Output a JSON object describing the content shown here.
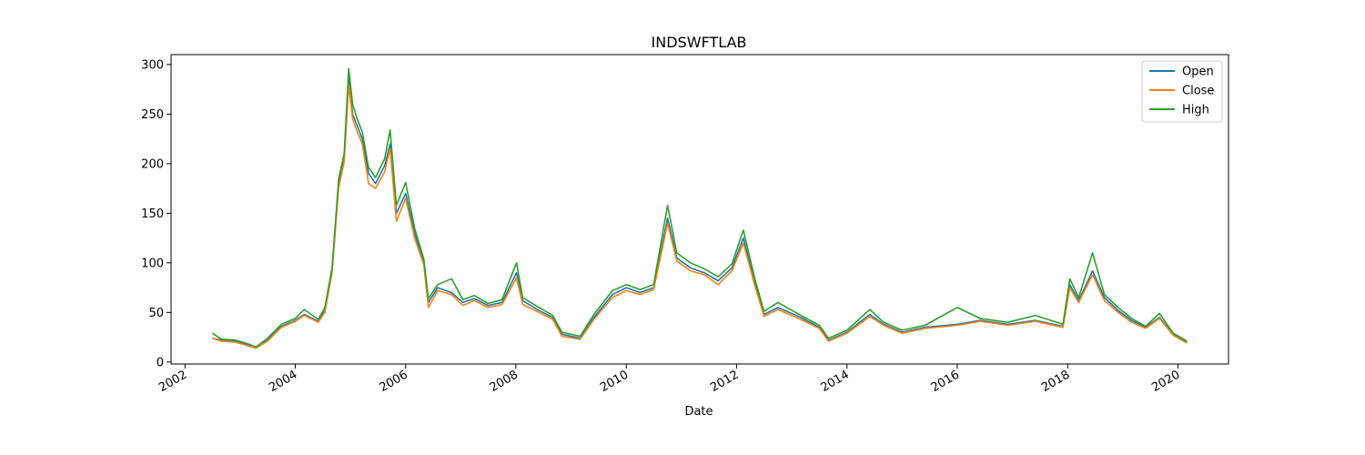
{
  "chart_data": {
    "type": "line",
    "title": "INDSWFTLAB",
    "xlabel": "Date",
    "ylabel": "",
    "xlim": [
      "2001-10-01",
      "2020-12-01"
    ],
    "ylim": [
      -2,
      310
    ],
    "grid": false,
    "legend_position": "top-right",
    "x_ticks": [
      "2002",
      "2004",
      "2006",
      "2008",
      "2010",
      "2012",
      "2014",
      "2016",
      "2018",
      "2020"
    ],
    "y_ticks": [
      0,
      50,
      100,
      150,
      200,
      250,
      300
    ],
    "series": [
      {
        "name": "Open",
        "color": "#1f77b4",
        "points": [
          [
            "2002-07-01",
            24
          ],
          [
            "2002-09-01",
            22
          ],
          [
            "2002-12-01",
            21
          ],
          [
            "2003-03-01",
            17
          ],
          [
            "2003-04-15",
            15
          ],
          [
            "2003-07-01",
            22
          ],
          [
            "2003-10-01",
            36
          ],
          [
            "2004-01-01",
            42
          ],
          [
            "2004-03-01",
            48
          ],
          [
            "2004-06-01",
            41
          ],
          [
            "2004-07-15",
            52
          ],
          [
            "2004-09-01",
            92
          ],
          [
            "2004-10-15",
            180
          ],
          [
            "2004-11-20",
            205
          ],
          [
            "2004-12-20",
            285
          ],
          [
            "2005-01-15",
            250
          ],
          [
            "2005-02-15",
            238
          ],
          [
            "2005-03-20",
            225
          ],
          [
            "2005-05-01",
            190
          ],
          [
            "2005-06-15",
            180
          ],
          [
            "2005-08-15",
            198
          ],
          [
            "2005-09-20",
            220
          ],
          [
            "2005-11-01",
            150
          ],
          [
            "2006-01-01",
            170
          ],
          [
            "2006-03-01",
            130
          ],
          [
            "2006-05-01",
            100
          ],
          [
            "2006-06-01",
            60
          ],
          [
            "2006-08-01",
            75
          ],
          [
            "2006-11-01",
            70
          ],
          [
            "2007-01-15",
            60
          ],
          [
            "2007-04-01",
            64
          ],
          [
            "2007-07-01",
            57
          ],
          [
            "2007-10-01",
            60
          ],
          [
            "2008-01-05",
            90
          ],
          [
            "2008-02-15",
            62
          ],
          [
            "2008-06-01",
            52
          ],
          [
            "2008-09-01",
            45
          ],
          [
            "2008-11-01",
            28
          ],
          [
            "2009-03-01",
            24
          ],
          [
            "2009-06-01",
            45
          ],
          [
            "2009-10-01",
            68
          ],
          [
            "2010-01-01",
            75
          ],
          [
            "2010-04-01",
            70
          ],
          [
            "2010-07-01",
            75
          ],
          [
            "2010-10-01",
            145
          ],
          [
            "2010-12-01",
            105
          ],
          [
            "2011-03-01",
            95
          ],
          [
            "2011-06-01",
            90
          ],
          [
            "2011-09-01",
            82
          ],
          [
            "2011-12-01",
            95
          ],
          [
            "2012-02-15",
            125
          ],
          [
            "2012-05-01",
            80
          ],
          [
            "2012-07-01",
            48
          ],
          [
            "2012-10-01",
            55
          ],
          [
            "2013-03-01",
            45
          ],
          [
            "2013-07-01",
            35
          ],
          [
            "2013-09-01",
            22
          ],
          [
            "2014-01-01",
            30
          ],
          [
            "2014-06-01",
            48
          ],
          [
            "2014-09-01",
            38
          ],
          [
            "2015-01-01",
            30
          ],
          [
            "2015-06-01",
            35
          ],
          [
            "2016-01-01",
            38
          ],
          [
            "2016-06-01",
            42
          ],
          [
            "2016-12-01",
            38
          ],
          [
            "2017-06-01",
            42
          ],
          [
            "2017-12-01",
            36
          ],
          [
            "2018-01-15",
            78
          ],
          [
            "2018-03-15",
            62
          ],
          [
            "2018-06-15",
            92
          ],
          [
            "2018-09-01",
            65
          ],
          [
            "2018-12-01",
            52
          ],
          [
            "2019-03-01",
            42
          ],
          [
            "2019-06-01",
            35
          ],
          [
            "2019-09-01",
            45
          ],
          [
            "2019-12-01",
            28
          ],
          [
            "2020-03-01",
            20
          ]
        ]
      },
      {
        "name": "Close",
        "color": "#ff7f0e",
        "points": [
          [
            "2002-07-01",
            24
          ],
          [
            "2002-09-01",
            21
          ],
          [
            "2002-12-01",
            20
          ],
          [
            "2003-03-01",
            16
          ],
          [
            "2003-04-15",
            14
          ],
          [
            "2003-07-01",
            21
          ],
          [
            "2003-10-01",
            35
          ],
          [
            "2004-01-01",
            41
          ],
          [
            "2004-03-01",
            47
          ],
          [
            "2004-06-01",
            40
          ],
          [
            "2004-07-15",
            50
          ],
          [
            "2004-09-01",
            90
          ],
          [
            "2004-10-15",
            176
          ],
          [
            "2004-11-20",
            202
          ],
          [
            "2004-12-20",
            280
          ],
          [
            "2005-01-15",
            245
          ],
          [
            "2005-02-15",
            232
          ],
          [
            "2005-03-20",
            220
          ],
          [
            "2005-05-01",
            180
          ],
          [
            "2005-06-15",
            175
          ],
          [
            "2005-08-15",
            192
          ],
          [
            "2005-09-20",
            215
          ],
          [
            "2005-11-01",
            142
          ],
          [
            "2006-01-01",
            165
          ],
          [
            "2006-03-01",
            125
          ],
          [
            "2006-05-01",
            98
          ],
          [
            "2006-06-01",
            55
          ],
          [
            "2006-08-01",
            72
          ],
          [
            "2006-11-01",
            68
          ],
          [
            "2007-01-15",
            57
          ],
          [
            "2007-04-01",
            62
          ],
          [
            "2007-07-01",
            55
          ],
          [
            "2007-10-01",
            58
          ],
          [
            "2008-01-05",
            85
          ],
          [
            "2008-02-15",
            58
          ],
          [
            "2008-06-01",
            50
          ],
          [
            "2008-09-01",
            43
          ],
          [
            "2008-11-01",
            26
          ],
          [
            "2009-03-01",
            23
          ],
          [
            "2009-06-01",
            43
          ],
          [
            "2009-10-01",
            65
          ],
          [
            "2010-01-01",
            72
          ],
          [
            "2010-04-01",
            68
          ],
          [
            "2010-07-01",
            73
          ],
          [
            "2010-10-01",
            140
          ],
          [
            "2010-12-01",
            102
          ],
          [
            "2011-03-01",
            92
          ],
          [
            "2011-06-01",
            88
          ],
          [
            "2011-09-01",
            78
          ],
          [
            "2011-12-01",
            92
          ],
          [
            "2012-02-15",
            120
          ],
          [
            "2012-05-01",
            77
          ],
          [
            "2012-07-01",
            46
          ],
          [
            "2012-10-01",
            53
          ],
          [
            "2013-03-01",
            43
          ],
          [
            "2013-07-01",
            34
          ],
          [
            "2013-09-01",
            21
          ],
          [
            "2014-01-01",
            29
          ],
          [
            "2014-06-01",
            46
          ],
          [
            "2014-09-01",
            37
          ],
          [
            "2015-01-01",
            29
          ],
          [
            "2015-06-01",
            34
          ],
          [
            "2016-01-01",
            37
          ],
          [
            "2016-06-01",
            41
          ],
          [
            "2016-12-01",
            37
          ],
          [
            "2017-06-01",
            41
          ],
          [
            "2017-12-01",
            35
          ],
          [
            "2018-01-15",
            75
          ],
          [
            "2018-03-15",
            60
          ],
          [
            "2018-06-15",
            88
          ],
          [
            "2018-09-01",
            62
          ],
          [
            "2018-12-01",
            50
          ],
          [
            "2019-03-01",
            40
          ],
          [
            "2019-06-01",
            34
          ],
          [
            "2019-09-01",
            44
          ],
          [
            "2019-12-01",
            27
          ],
          [
            "2020-03-01",
            19
          ]
        ]
      },
      {
        "name": "High",
        "color": "#2ca02c",
        "points": [
          [
            "2002-07-01",
            29
          ],
          [
            "2002-09-01",
            23
          ],
          [
            "2002-12-01",
            22
          ],
          [
            "2003-03-01",
            18
          ],
          [
            "2003-04-15",
            15
          ],
          [
            "2003-07-01",
            24
          ],
          [
            "2003-10-01",
            38
          ],
          [
            "2004-01-01",
            44
          ],
          [
            "2004-03-01",
            53
          ],
          [
            "2004-06-01",
            43
          ],
          [
            "2004-07-15",
            55
          ],
          [
            "2004-09-01",
            95
          ],
          [
            "2004-10-15",
            185
          ],
          [
            "2004-11-20",
            210
          ],
          [
            "2004-12-20",
            296
          ],
          [
            "2005-01-15",
            260
          ],
          [
            "2005-02-15",
            245
          ],
          [
            "2005-03-20",
            232
          ],
          [
            "2005-05-01",
            196
          ],
          [
            "2005-06-15",
            186
          ],
          [
            "2005-08-15",
            205
          ],
          [
            "2005-09-20",
            234
          ],
          [
            "2005-11-01",
            158
          ],
          [
            "2006-01-01",
            181
          ],
          [
            "2006-03-01",
            135
          ],
          [
            "2006-05-01",
            104
          ],
          [
            "2006-06-01",
            64
          ],
          [
            "2006-08-01",
            78
          ],
          [
            "2006-11-01",
            84
          ],
          [
            "2007-01-15",
            63
          ],
          [
            "2007-04-01",
            67
          ],
          [
            "2007-07-01",
            59
          ],
          [
            "2007-10-01",
            63
          ],
          [
            "2008-01-05",
            100
          ],
          [
            "2008-02-15",
            65
          ],
          [
            "2008-06-01",
            55
          ],
          [
            "2008-09-01",
            47
          ],
          [
            "2008-11-01",
            30
          ],
          [
            "2009-03-01",
            26
          ],
          [
            "2009-06-01",
            48
          ],
          [
            "2009-10-01",
            72
          ],
          [
            "2010-01-01",
            78
          ],
          [
            "2010-04-01",
            73
          ],
          [
            "2010-07-01",
            78
          ],
          [
            "2010-10-01",
            158
          ],
          [
            "2010-12-01",
            110
          ],
          [
            "2011-03-01",
            100
          ],
          [
            "2011-06-01",
            94
          ],
          [
            "2011-09-01",
            86
          ],
          [
            "2011-12-01",
            99
          ],
          [
            "2012-02-15",
            133
          ],
          [
            "2012-05-01",
            84
          ],
          [
            "2012-07-01",
            51
          ],
          [
            "2012-10-01",
            60
          ],
          [
            "2013-03-01",
            47
          ],
          [
            "2013-07-01",
            37
          ],
          [
            "2013-09-01",
            24
          ],
          [
            "2014-01-01",
            32
          ],
          [
            "2014-06-01",
            53
          ],
          [
            "2014-09-01",
            40
          ],
          [
            "2015-01-01",
            32
          ],
          [
            "2015-06-01",
            37
          ],
          [
            "2016-01-01",
            55
          ],
          [
            "2016-06-01",
            44
          ],
          [
            "2016-12-01",
            40
          ],
          [
            "2017-06-01",
            47
          ],
          [
            "2017-12-01",
            38
          ],
          [
            "2018-01-15",
            84
          ],
          [
            "2018-03-15",
            65
          ],
          [
            "2018-06-15",
            110
          ],
          [
            "2018-09-01",
            68
          ],
          [
            "2018-12-01",
            55
          ],
          [
            "2019-03-01",
            44
          ],
          [
            "2019-06-01",
            36
          ],
          [
            "2019-09-01",
            49
          ],
          [
            "2019-12-01",
            29
          ],
          [
            "2020-03-01",
            21
          ]
        ]
      }
    ]
  }
}
